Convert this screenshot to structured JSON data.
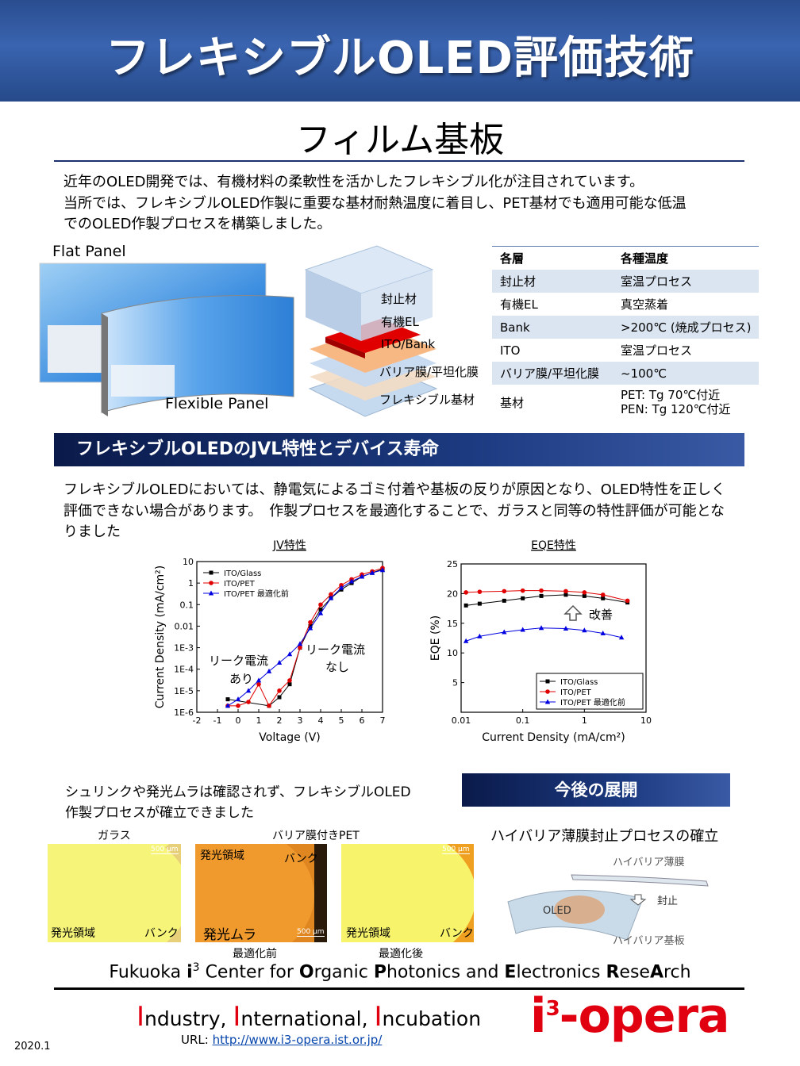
{
  "header": {
    "title": "フレキシブルOLED評価技術"
  },
  "subtitle": "フィルム基板",
  "intro": [
    "近年のOLED開発では、有機材料の柔軟性を活かしたフレキシブル化が注目されています。",
    "当所では、フレキシブルOLED作製に重要な基材耐熱温度に着目し、PET基材でも適用可能な低温",
    "でのOLED作製プロセスを構築しました。"
  ],
  "panels": {
    "flat": "Flat Panel",
    "flexible": "Flexible Panel"
  },
  "layers": [
    "封止材",
    "有機EL",
    "ITO/Bank",
    "バリア膜/平坦化膜",
    "フレキシブル基材"
  ],
  "table": {
    "header": [
      "各層",
      "各種温度"
    ],
    "rows": [
      [
        "封止材",
        "室温プロセス"
      ],
      [
        "有機EL",
        "真空蒸着"
      ],
      [
        "Bank",
        ">200℃ (焼成プロセス)"
      ],
      [
        "ITO",
        "室温プロセス"
      ],
      [
        "バリア膜/平坦化膜",
        "~100℃"
      ],
      [
        "基材",
        [
          "PET: Tg 70℃付近",
          "PEN: Tg 120℃付近"
        ]
      ]
    ]
  },
  "section": {
    "title": "フレキシブルOLEDのJVL特性とデバイス寿命",
    "text": [
      "フレキシブルOLEDにおいては、静電気によるゴミ付着や基板の反りが原因となり、OLED特性を正しく",
      "評価できない場合があります。　作製プロセスを最適化することで、ガラスと同等の特性評価が可能とな",
      "りました"
    ]
  },
  "jv_chart": {
    "type": "line",
    "title": "JV特性",
    "x_label": "Voltage (V)",
    "y_label": "Current Density (mA/cm²)",
    "xlim": [
      -2,
      7
    ],
    "xticks": [
      -2,
      -1,
      0,
      1,
      2,
      3,
      4,
      5,
      6,
      7
    ],
    "ylim": [
      1e-06,
      10
    ],
    "ylog": true,
    "yticks": [
      {
        "value": 1e-06,
        "label": "1E-6"
      },
      {
        "value": 1e-05,
        "label": "1E-5"
      },
      {
        "value": 0.0001,
        "label": "1E-4"
      },
      {
        "value": 0.001,
        "label": "1E-3"
      },
      0.01,
      0.1,
      1,
      10
    ],
    "legend": "top-left",
    "annotations": [
      "リーク電流",
      "あり",
      "リーク電流",
      "なし"
    ],
    "series": [
      {
        "name": "ITO/Glass",
        "color": "#000000",
        "marker": "square",
        "x": [
          -0.5,
          1.5,
          2,
          2.5,
          3,
          3.5,
          4,
          4.5,
          5,
          5.5,
          6,
          6.5,
          7
        ],
        "values": [
          4e-06,
          2e-06,
          5e-06,
          2e-05,
          0.001,
          0.01,
          0.06,
          0.2,
          0.5,
          1,
          2,
          3,
          4.5
        ]
      },
      {
        "name": "ITO/PET",
        "color": "#e00000",
        "marker": "circle",
        "x": [
          -0.5,
          0,
          0.5,
          1,
          1.5,
          2,
          2.5,
          3,
          3.5,
          4,
          4.5,
          5,
          5.5,
          6,
          6.5,
          7
        ],
        "values": [
          2e-06,
          2e-06,
          3e-06,
          2e-05,
          2e-06,
          1e-05,
          3e-05,
          0.001,
          0.015,
          0.1,
          0.3,
          0.8,
          1.5,
          2.5,
          3.5,
          5
        ]
      },
      {
        "name": "ITO/PET 最適化前",
        "color": "#0000e0",
        "marker": "triangle",
        "x": [
          -0.5,
          0,
          0.5,
          1,
          1.5,
          2,
          2.5,
          3,
          3.5,
          4,
          4.5,
          5,
          5.5,
          6,
          6.5,
          7
        ],
        "values": [
          2e-06,
          4e-06,
          1e-05,
          3e-05,
          8e-05,
          0.0002,
          0.0005,
          0.0015,
          0.008,
          0.04,
          0.2,
          0.6,
          1.2,
          2,
          3,
          4
        ]
      }
    ]
  },
  "eqe_chart": {
    "type": "line",
    "title": "EQE特性",
    "x_label": "Current Density (mA/cm²)",
    "y_label": "EQE (%)",
    "xlim": [
      0.01,
      10
    ],
    "xlog": true,
    "xticks": [
      0.01,
      0.1,
      1,
      10
    ],
    "ylim": [
      0,
      25
    ],
    "yticks": [
      5,
      10,
      15,
      20,
      25
    ],
    "legend": "bottom-right",
    "annotations": [
      "改善"
    ],
    "series": [
      {
        "name": "ITO/Glass",
        "color": "#000000",
        "marker": "square",
        "x": [
          0.012,
          0.02,
          0.05,
          0.1,
          0.2,
          0.5,
          1,
          2,
          5
        ],
        "values": [
          18,
          18.3,
          18.8,
          19.2,
          19.6,
          19.8,
          19.6,
          19.2,
          18.5
        ]
      },
      {
        "name": "ITO/PET",
        "color": "#e00000",
        "marker": "circle",
        "x": [
          0.012,
          0.02,
          0.05,
          0.1,
          0.2,
          0.5,
          1,
          2,
          5
        ],
        "values": [
          20.2,
          20.3,
          20.4,
          20.5,
          20.5,
          20.4,
          20.2,
          19.8,
          18.8
        ]
      },
      {
        "name": "ITO/PET 最適化前",
        "color": "#0000e0",
        "marker": "triangle",
        "x": [
          0.012,
          0.02,
          0.05,
          0.1,
          0.2,
          0.5,
          1,
          2,
          4
        ],
        "values": [
          12,
          12.8,
          13.5,
          13.9,
          14.2,
          14.1,
          13.8,
          13.3,
          12.6
        ]
      }
    ]
  },
  "result_text": [
    "シュリンクや発光ムラは確認されず、フレキシブルOLED",
    "作製プロセスが確立できました"
  ],
  "images": {
    "captions": [
      "ガラス",
      "バリア膜付きPET",
      "最適化前",
      "最適化後"
    ],
    "scale": "500 μm",
    "labels": [
      "発光領域",
      "バンク",
      "発光領域",
      "バンク",
      "発光ムラ",
      "発光領域",
      "バンク"
    ]
  },
  "future": {
    "title": "今後の展開",
    "subtitle": "ハイバリア薄膜封止プロセスの確立",
    "labels": [
      "ハイバリア薄膜",
      "封止",
      "OLED",
      "ハイバリア基板"
    ]
  },
  "footer": {
    "center": [
      {
        "text": "Fukuoka ",
        "bold": false
      },
      {
        "text": "i",
        "bold": true
      },
      {
        "text": "3",
        "bold": false,
        "sup": true
      },
      {
        "text": " Center for ",
        "bold": false
      },
      {
        "text": "O",
        "bold": true
      },
      {
        "text": "rganic ",
        "bold": false
      },
      {
        "text": "P",
        "bold": true
      },
      {
        "text": "hotonics and ",
        "bold": false
      },
      {
        "text": "E",
        "bold": true
      },
      {
        "text": "lectronics ",
        "bold": false
      },
      {
        "text": "R",
        "bold": true
      },
      {
        "text": "ese",
        "bold": false
      },
      {
        "text": "A",
        "bold": true
      },
      {
        "text": "rch",
        "bold": false
      }
    ],
    "motto": [
      {
        "text": "I",
        "color": "#e00010"
      },
      {
        "text": "ndustry, ",
        "color": "#000000"
      },
      {
        "text": "I",
        "color": "#e00010"
      },
      {
        "text": "nternational, ",
        "color": "#000000"
      },
      {
        "text": "I",
        "color": "#e00010"
      },
      {
        "text": "ncubation",
        "color": "#000000"
      }
    ],
    "url_label": "URL: ",
    "url": "http://www.i3-opera.ist.or.jp/",
    "date": "2020.1",
    "logo": [
      {
        "text": "i",
        "sup": false
      },
      {
        "text": "3",
        "sup": true
      },
      {
        "text": "-opera",
        "sup": false
      }
    ]
  }
}
